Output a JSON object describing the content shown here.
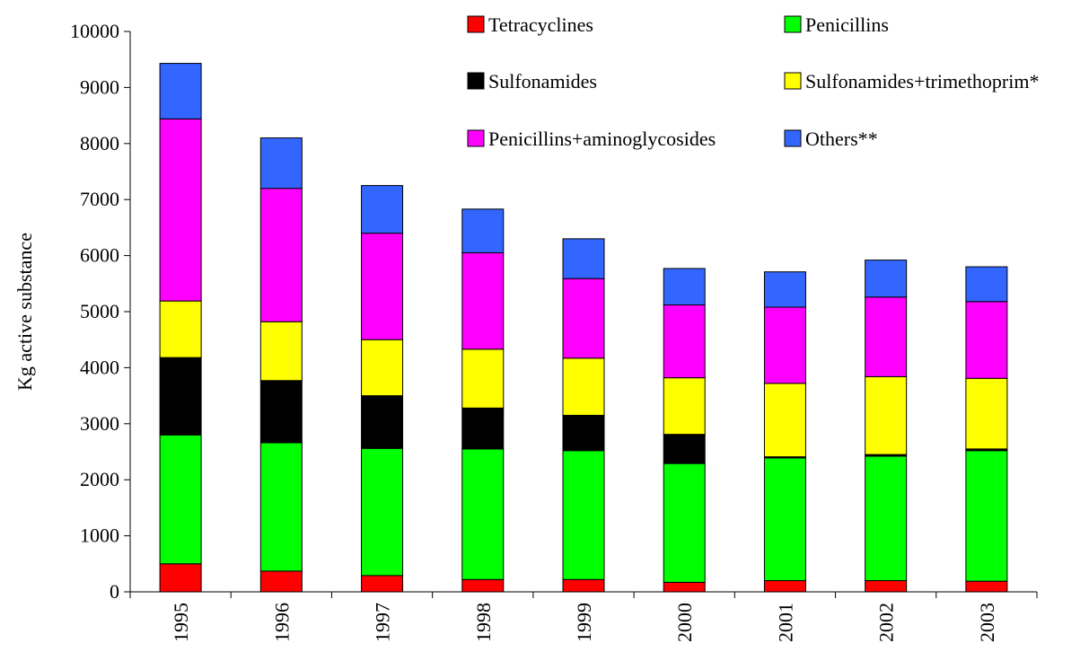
{
  "chart_data": {
    "type": "bar",
    "stacked": true,
    "title": "",
    "xlabel": "",
    "ylabel": "Kg active substance",
    "ylim": [
      0,
      10000
    ],
    "yticks": [
      0,
      1000,
      2000,
      3000,
      4000,
      5000,
      6000,
      7000,
      8000,
      9000,
      10000
    ],
    "categories": [
      "1995",
      "1996",
      "1997",
      "1998",
      "1999",
      "2000",
      "2001",
      "2002",
      "2003"
    ],
    "grid": false,
    "legend_position": "top-right",
    "series": [
      {
        "name": "Tetracyclines",
        "color": "#ff0000",
        "values": [
          500,
          370,
          290,
          220,
          220,
          170,
          200,
          200,
          190
        ]
      },
      {
        "name": "Penicillins",
        "color": "#00ff00",
        "values": [
          2300,
          2290,
          2270,
          2330,
          2300,
          2120,
          2190,
          2220,
          2330
        ]
      },
      {
        "name": "Sulfonamides",
        "color": "#000000",
        "values": [
          1380,
          1110,
          940,
          730,
          630,
          520,
          20,
          30,
          30
        ]
      },
      {
        "name": "Sulfonamides+trimethoprim*",
        "color": "#ffff00",
        "values": [
          1010,
          1050,
          1000,
          1050,
          1020,
          1010,
          1310,
          1390,
          1260
        ]
      },
      {
        "name": "Penicillins+aminoglycosides",
        "color": "#ff00ff",
        "values": [
          3250,
          2380,
          1900,
          1720,
          1420,
          1300,
          1360,
          1420,
          1370
        ]
      },
      {
        "name": "Others**",
        "color": "#3366ff",
        "values": [
          990,
          900,
          850,
          780,
          710,
          650,
          630,
          660,
          620
        ]
      }
    ]
  }
}
